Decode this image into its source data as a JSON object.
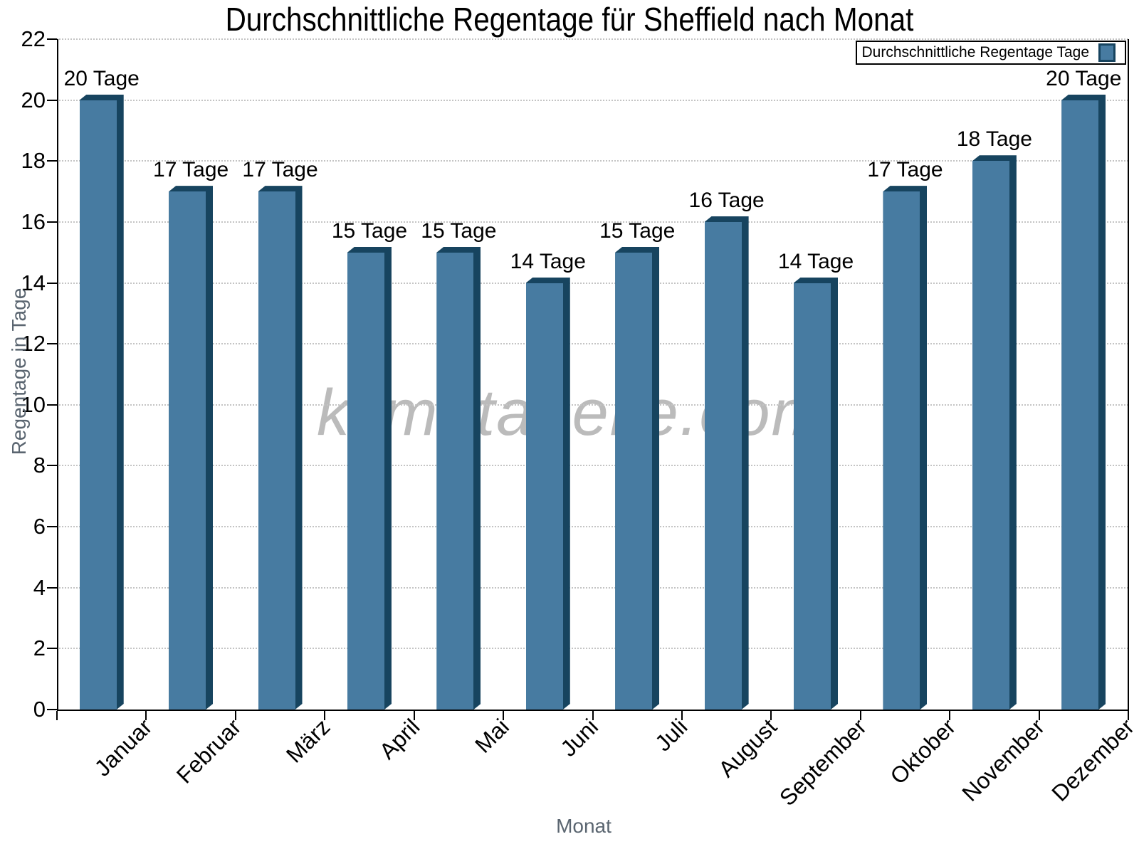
{
  "chart_data": {
    "type": "bar",
    "title": "Durchschnittliche Regentage für Sheffield nach Monat",
    "xlabel": "Monat",
    "ylabel": "Regentage in Tage",
    "categories": [
      "Januar",
      "Februar",
      "März",
      "April",
      "Mai",
      "Juni",
      "Juli",
      "August",
      "September",
      "Oktober",
      "November",
      "Dezember"
    ],
    "values": [
      20,
      17,
      17,
      15,
      15,
      14,
      15,
      16,
      14,
      17,
      18,
      20
    ],
    "bar_labels": [
      "20 Tage",
      "17 Tage",
      "17 Tage",
      "15 Tage",
      "15 Tage",
      "14 Tage",
      "15 Tage",
      "16 Tage",
      "14 Tage",
      "17 Tage",
      "18 Tage",
      "20 Tage"
    ],
    "ylim": [
      0,
      22
    ],
    "yticks": [
      0,
      2,
      4,
      6,
      8,
      10,
      12,
      14,
      16,
      18,
      20,
      22
    ],
    "grid": {
      "horizontal": true,
      "style": "dotted"
    },
    "legend": {
      "label": "Durchschnittliche Regentage Tage",
      "position": "top-right"
    },
    "watermark": "klimatabelle.com",
    "colors": {
      "bar_face": "#477BA1",
      "bar_edge": "#17445F",
      "grid": "#c4c4c4",
      "axis_text": "#5A6570",
      "value_label": "#000000",
      "watermark": "#969696"
    }
  }
}
